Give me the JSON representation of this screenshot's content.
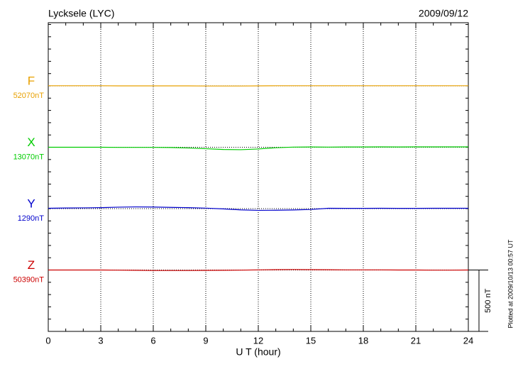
{
  "chart_data": {
    "type": "line",
    "title": "Lycksele (LYC)",
    "date": "2009/09/12",
    "xlabel": "U T (hour)",
    "note": "Plotted at 2009/10/13 00:57 UT",
    "scale_bar": {
      "value": 500,
      "label": "500 nT"
    },
    "xlim": [
      0,
      24
    ],
    "xticks": [
      0,
      3,
      6,
      9,
      12,
      15,
      18,
      21,
      24
    ],
    "grid": true,
    "x": [
      0,
      1,
      2,
      3,
      4,
      5,
      6,
      7,
      8,
      9,
      10,
      11,
      12,
      13,
      14,
      15,
      16,
      17,
      18,
      19,
      20,
      21,
      22,
      23,
      24
    ],
    "series": [
      {
        "name": "F",
        "color": "#e8a000",
        "baseline": {
          "value": 52070,
          "label": "52070nT"
        },
        "values": [
          52071,
          52071,
          52071,
          52071,
          52070,
          52070,
          52070,
          52070,
          52070,
          52069,
          52069,
          52069,
          52070,
          52071,
          52071,
          52071,
          52071,
          52071,
          52071,
          52071,
          52071,
          52071,
          52071,
          52071,
          52071
        ]
      },
      {
        "name": "X",
        "color": "#00cc00",
        "baseline": {
          "value": 13070,
          "label": "13070nT"
        },
        "values": [
          13070,
          13070,
          13070,
          13070,
          13069,
          13069,
          13069,
          13068,
          13064,
          13058,
          13052,
          13050,
          13056,
          13066,
          13071,
          13072,
          13071,
          13072,
          13072,
          13073,
          13072,
          13073,
          13073,
          13073,
          13073
        ]
      },
      {
        "name": "Y",
        "color": "#0000cc",
        "baseline": {
          "value": 1290,
          "label": "1290nT"
        },
        "values": [
          1293,
          1295,
          1296,
          1298,
          1302,
          1304,
          1303,
          1300,
          1298,
          1294,
          1288,
          1280,
          1276,
          1277,
          1279,
          1283,
          1293,
          1292,
          1292,
          1293,
          1292,
          1292,
          1293,
          1293,
          1293
        ]
      },
      {
        "name": "Z",
        "color": "#cc0000",
        "baseline": {
          "value": 50390,
          "label": "50390nT"
        },
        "values": [
          50390,
          50390,
          50390,
          50390,
          50389,
          50388,
          50386,
          50386,
          50386,
          50387,
          50388,
          50389,
          50391,
          50393,
          50394,
          50393,
          50392,
          50391,
          50391,
          50391,
          50390,
          50390,
          50389,
          50389,
          50390
        ]
      }
    ]
  }
}
